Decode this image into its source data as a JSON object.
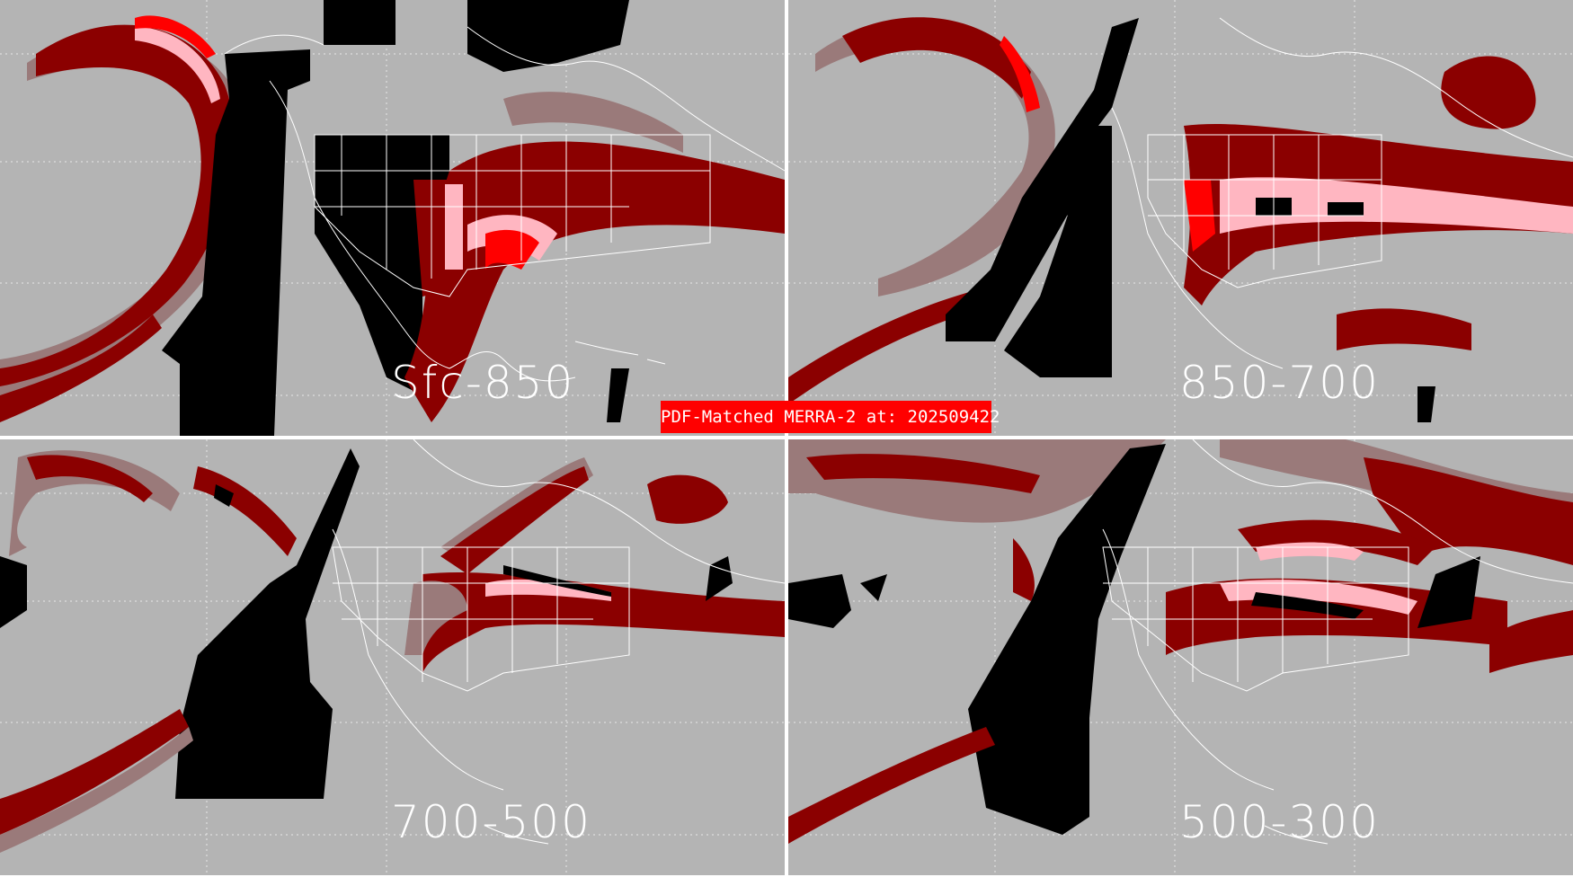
{
  "banner": "PDF-Matched MERRA-2 at: 202509422",
  "colors": {
    "background": "#b4b4b4",
    "no_data": "#000000",
    "level_light": "#9a7a7a",
    "level_mid": "#8b0000",
    "level_high": "#ffb6c1",
    "level_max": "#ff0000",
    "border_lines": "#ffffff"
  },
  "panels": [
    {
      "label": "Sfc-850"
    },
    {
      "label": "850-700"
    },
    {
      "label": "700-500"
    },
    {
      "label": "500-300"
    }
  ]
}
